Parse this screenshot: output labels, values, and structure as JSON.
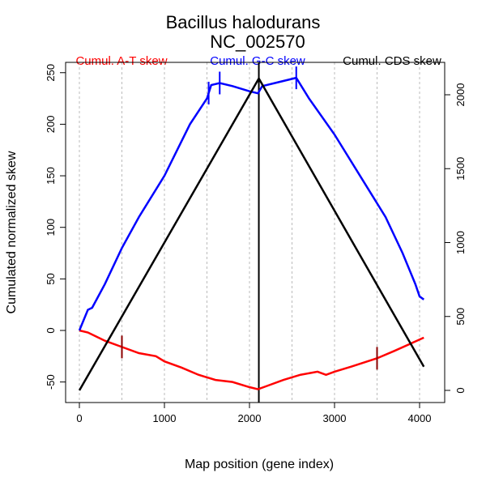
{
  "chart_data": {
    "type": "line",
    "title": "Bacillus halodurans",
    "subtitle": "NC_002570",
    "xlabel": "Map position (gene index)",
    "ylabel": "Cumulated normalized skew",
    "xlim": [
      -150,
      4250
    ],
    "ylim_left": [
      -70,
      262
    ],
    "ylim_right": [
      -60,
      2250
    ],
    "xticks": [
      0,
      1000,
      2000,
      3000,
      4000
    ],
    "yticks_left": [
      -50,
      0,
      50,
      100,
      150,
      200,
      250
    ],
    "yticks_right": [
      0,
      500,
      1000,
      1500,
      2000
    ],
    "grid_x": [
      0,
      500,
      1000,
      1500,
      2000,
      2500,
      3000,
      3500,
      4000
    ],
    "legend": [
      {
        "label": "Cumul. A-T skew",
        "color": "#ff0000"
      },
      {
        "label": "Cumul. G-C skew",
        "color": "#0000ff"
      },
      {
        "label": "Cumul. CDS skew",
        "color": "#000000"
      }
    ],
    "series": [
      {
        "name": "Cumul. A-T skew",
        "axis": "left",
        "color": "#ff0000",
        "x": [
          0,
          100,
          200,
          300,
          500,
          700,
          900,
          1000,
          1200,
          1400,
          1600,
          1800,
          2000,
          2100,
          2200,
          2400,
          2600,
          2800,
          2900,
          3000,
          3200,
          3500,
          3700,
          4050
        ],
        "y": [
          0,
          -2,
          -6,
          -10,
          -16,
          -22,
          -25,
          -30,
          -36,
          -43,
          -48,
          -50,
          -55,
          -57,
          -54,
          -48,
          -43,
          -40,
          -43,
          -40,
          -35,
          -27,
          -20,
          -7
        ]
      },
      {
        "name": "Cumul. G-C skew",
        "axis": "left",
        "color": "#0000ff",
        "x": [
          0,
          50,
          100,
          150,
          300,
          500,
          700,
          1000,
          1300,
          1500,
          1550,
          1650,
          1800,
          2000,
          2100,
          2150,
          2300,
          2550,
          2700,
          3000,
          3300,
          3600,
          3800,
          3950,
          4000,
          4050
        ],
        "y": [
          0,
          10,
          20,
          22,
          45,
          80,
          110,
          150,
          200,
          225,
          238,
          240,
          237,
          232,
          230,
          237,
          240,
          245,
          225,
          190,
          150,
          110,
          75,
          45,
          33,
          30
        ]
      },
      {
        "name": "Cumul. CDS skew",
        "axis": "right",
        "color": "#000000",
        "x": [
          0,
          2110,
          4050
        ],
        "y": [
          0,
          2110,
          160
        ]
      }
    ],
    "markers": [
      {
        "series": "Cumul. A-T skew",
        "x": [
          500,
          3500
        ],
        "color": "#8b0000"
      },
      {
        "series": "Cumul. G-C skew",
        "x": [
          1520,
          1650,
          2550
        ],
        "color": "#0000ff"
      }
    ],
    "vline_x": 2110
  }
}
